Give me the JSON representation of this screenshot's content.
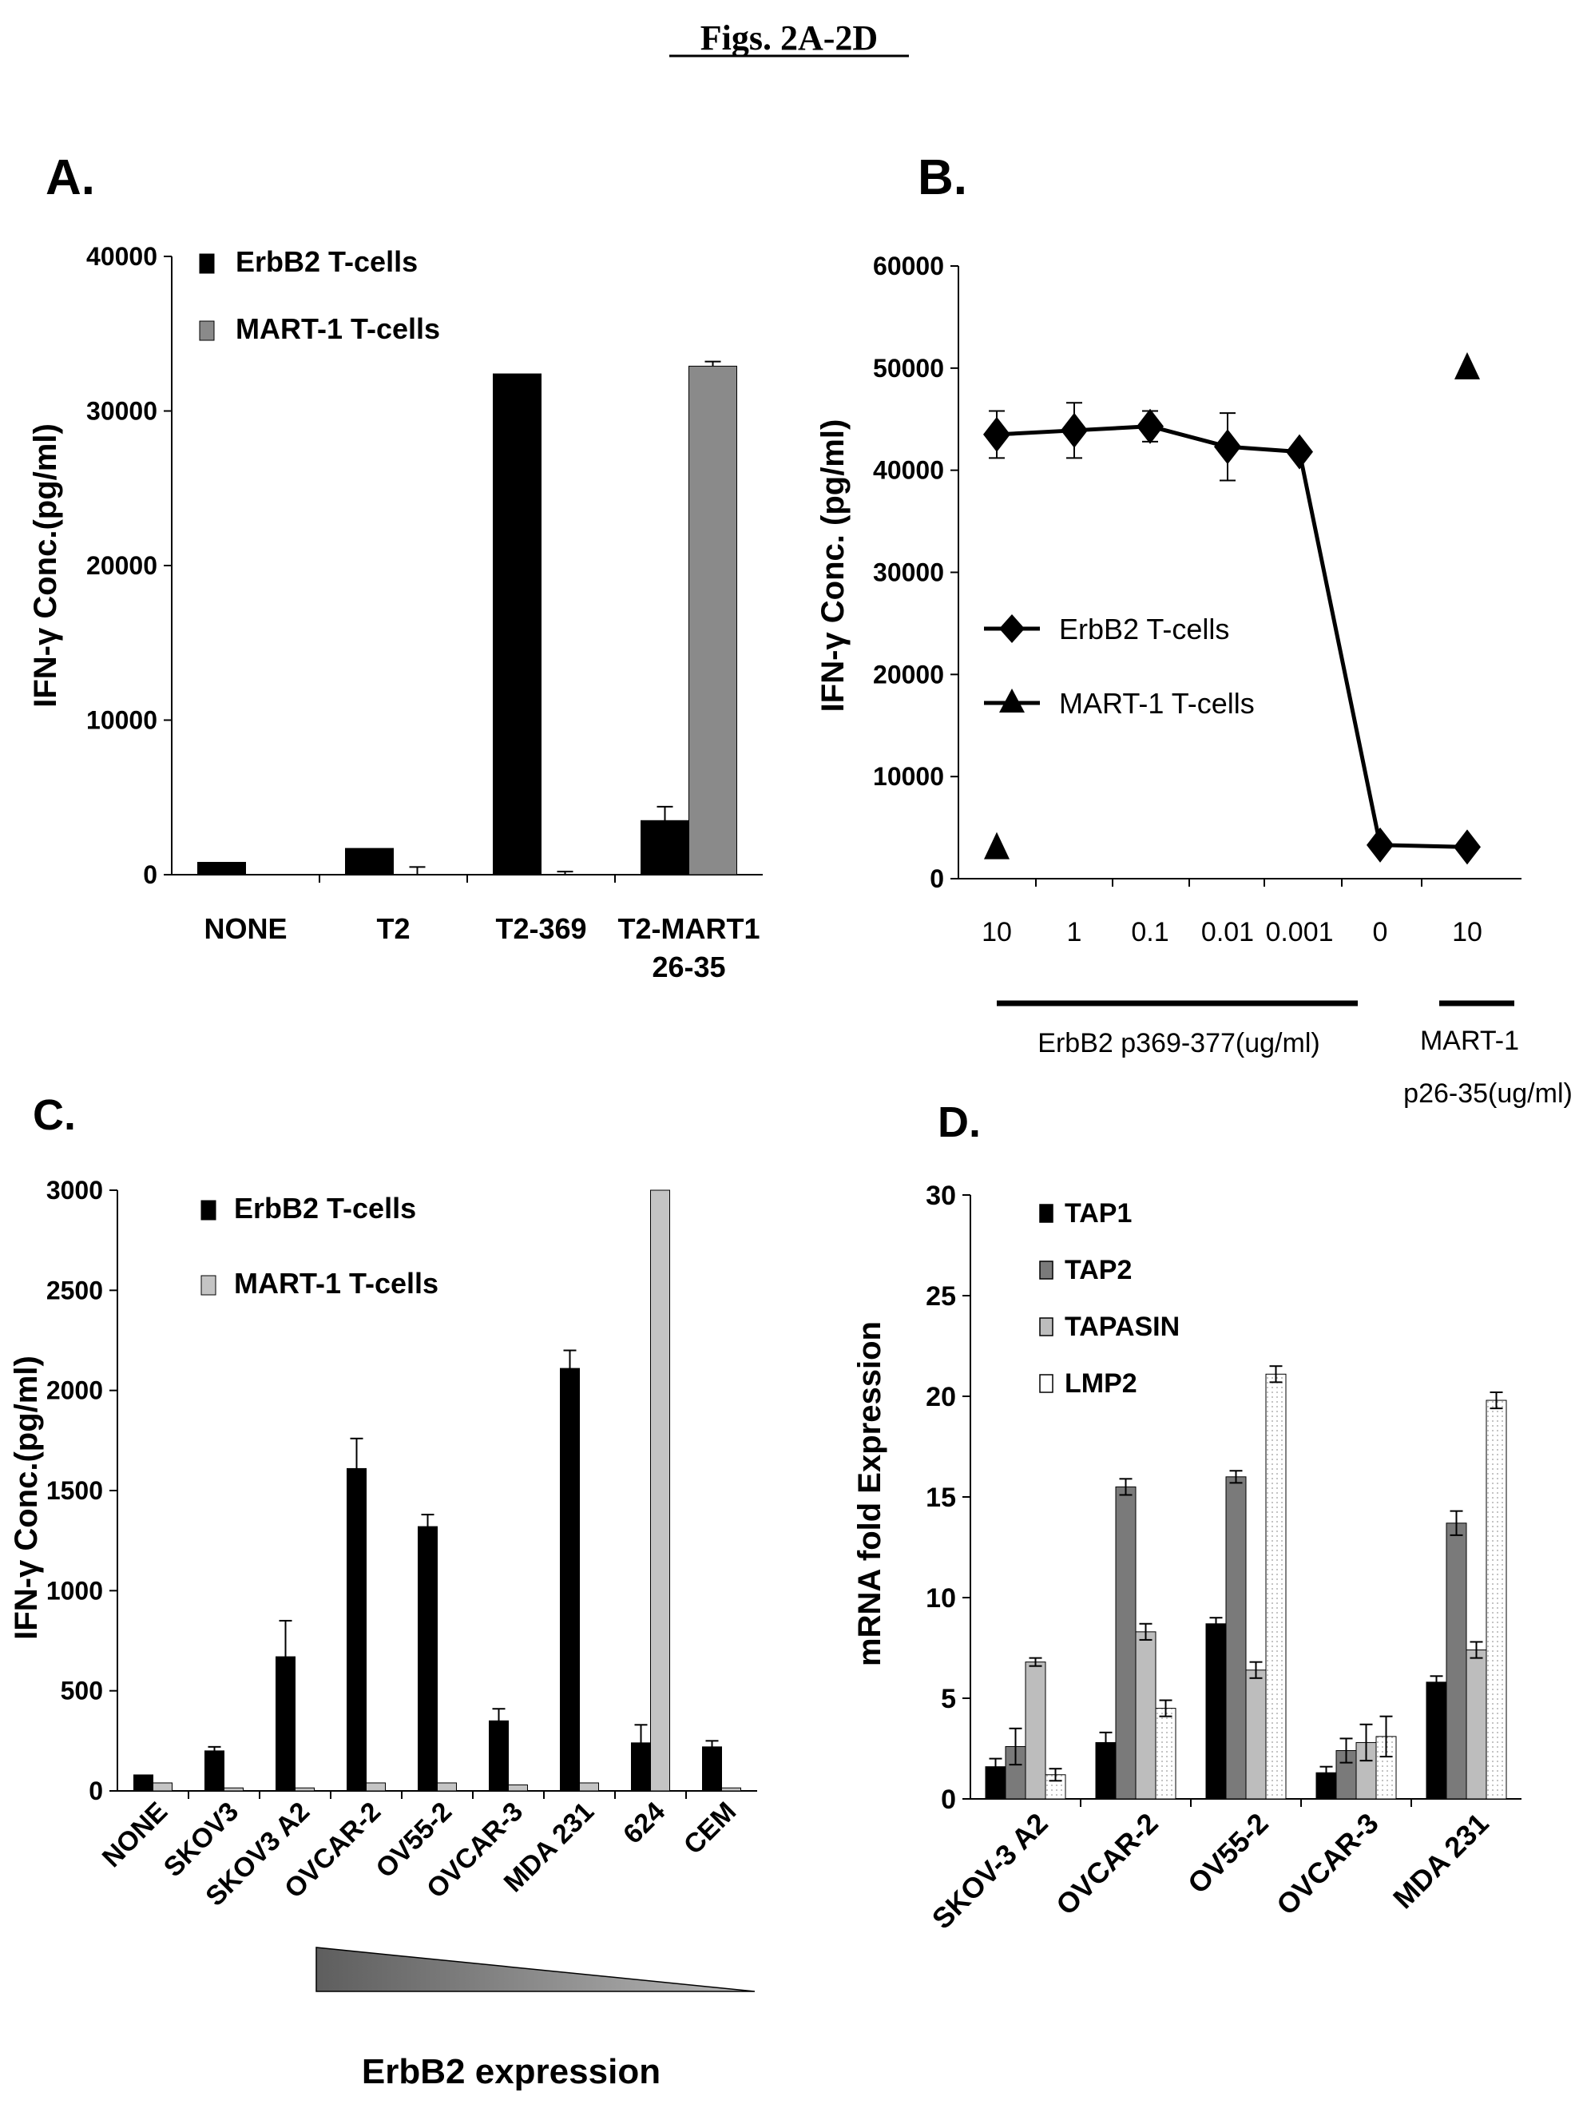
{
  "page_title": "Figs. 2A-2D",
  "chart_data": [
    {
      "id": "A",
      "panel_label": "A.",
      "type": "bar",
      "ylabel": "IFN-γ Conc.(pg/ml)",
      "ylim": [
        0,
        40000
      ],
      "yticks": [
        "0",
        "10000",
        "20000",
        "30000",
        "40000"
      ],
      "categories": [
        "NONE",
        "T2",
        "T2-369",
        "T2-MART1\n26-35"
      ],
      "category_labels": [
        [
          "NONE"
        ],
        [
          "T2"
        ],
        [
          "T2-369"
        ],
        [
          "T2-MART1",
          "26-35"
        ]
      ],
      "series": [
        {
          "name": "ErbB2 T-cells",
          "color": "#000000",
          "values": [
            800,
            1700,
            32400,
            3500
          ],
          "errors": [
            0,
            0,
            0,
            900
          ]
        },
        {
          "name": "MART-1 T-cells",
          "color": "#8a8a8a",
          "values": [
            0,
            0,
            0,
            32900
          ],
          "errors": [
            0,
            500,
            200,
            300
          ]
        }
      ],
      "legend_position": "top-left"
    },
    {
      "id": "B",
      "panel_label": "B.",
      "type": "line",
      "ylabel": "IFN-γ Conc. (pg/ml)",
      "ylim": [
        0,
        60000
      ],
      "yticks": [
        "0",
        "10000",
        "20000",
        "30000",
        "40000",
        "50000",
        "60000"
      ],
      "x_labels": [
        "10",
        "1",
        "0.1",
        "0.01",
        "0.001",
        "0",
        "10"
      ],
      "series": [
        {
          "name": "ErbB2 T-cells",
          "marker": "diamond",
          "values": [
            43500,
            43900,
            44300,
            42300,
            41800,
            3300,
            3100
          ],
          "errors": [
            2300,
            2700,
            1500,
            3300,
            0,
            0,
            0
          ]
        },
        {
          "name": "MART-1 T-cells",
          "marker": "triangle",
          "points": [
            [
              0,
              3000
            ],
            [
              6,
              50000
            ]
          ]
        }
      ],
      "group_labels": [
        {
          "text": "ErbB2 p369-377(ug/ml)",
          "lines": [
            "ErbB2 p369-377(ug/ml)"
          ]
        },
        {
          "text": "MART-1 p26-35(ug/ml)",
          "lines": [
            "MART-1",
            "p26-35(ug/ml)"
          ]
        }
      ],
      "legend_position": "middle-left"
    },
    {
      "id": "C",
      "panel_label": "C.",
      "type": "bar",
      "ylabel": "IFN-γ Conc.(pg/ml)",
      "ylim": [
        0,
        3000
      ],
      "yticks": [
        "0",
        "500",
        "1000",
        "1500",
        "2000",
        "2500",
        "3000"
      ],
      "categories": [
        "NONE",
        "SKOV3",
        "SKOV3 A2",
        "OVCAR-2",
        "OV55-2",
        "OVCAR-3",
        "MDA 231",
        "624",
        "CEM"
      ],
      "series": [
        {
          "name": "ErbB2 T-cells",
          "color": "#000000",
          "values": [
            80,
            200,
            670,
            1610,
            1320,
            350,
            2110,
            240,
            220
          ],
          "errors": [
            0,
            20,
            180,
            150,
            60,
            60,
            90,
            90,
            30
          ]
        },
        {
          "name": "MART-1 T-cells",
          "color": "#c4c4c4",
          "values": [
            40,
            15,
            15,
            40,
            40,
            30,
            40,
            3000,
            15
          ],
          "errors": [
            0,
            0,
            0,
            0,
            0,
            0,
            0,
            0,
            0
          ]
        }
      ],
      "annotation": "ErbB2 expression",
      "legend_position": "top-left"
    },
    {
      "id": "D",
      "panel_label": "D.",
      "type": "bar",
      "ylabel": "mRNA fold Expression",
      "ylim": [
        0,
        30
      ],
      "yticks": [
        "0",
        "5",
        "10",
        "15",
        "20",
        "25",
        "30"
      ],
      "categories": [
        "SKOV-3 A2",
        "OVCAR-2",
        "OV55-2",
        "OVCAR-3",
        "MDA 231"
      ],
      "series": [
        {
          "name": "TAP1",
          "color": "#000000",
          "values": [
            1.6,
            2.8,
            8.7,
            1.3,
            5.8
          ],
          "errors": [
            0.4,
            0.5,
            0.3,
            0.3,
            0.3
          ]
        },
        {
          "name": "TAP2",
          "color": "#7a7a7a",
          "values": [
            2.6,
            15.5,
            16.0,
            2.4,
            13.7
          ],
          "errors": [
            0.9,
            0.4,
            0.3,
            0.6,
            0.6
          ]
        },
        {
          "name": "TAPASIN",
          "color": "#bdbdbd",
          "values": [
            6.8,
            8.3,
            6.4,
            2.8,
            7.4
          ],
          "errors": [
            0.2,
            0.4,
            0.4,
            0.9,
            0.4
          ]
        },
        {
          "name": "LMP2",
          "color": "#ffffff",
          "values": [
            1.2,
            4.5,
            21.1,
            3.1,
            19.8
          ],
          "errors": [
            0.3,
            0.4,
            0.4,
            1.0,
            0.4
          ]
        }
      ],
      "legend_position": "top-left"
    }
  ]
}
